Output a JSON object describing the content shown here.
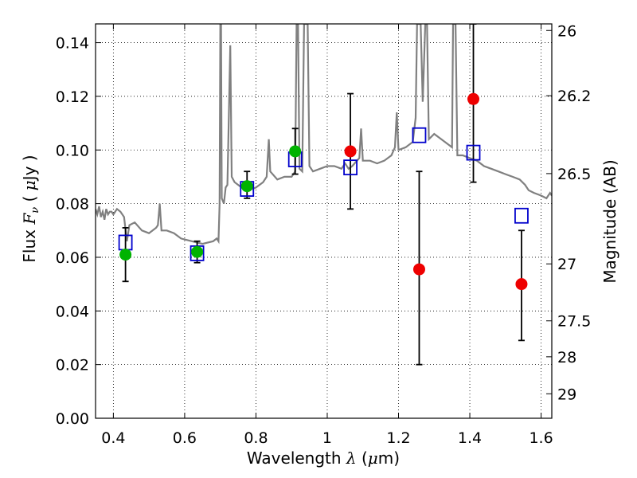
{
  "chart_data": {
    "type": "scatter",
    "xlabel": {
      "prefix": "Wavelength  ",
      "symbol": "λ",
      "open": " (",
      "mu": "μ",
      "unit": "m)"
    },
    "ylabel": {
      "prefix": "Flux  ",
      "symbol": "F",
      "sub": "ν",
      "open": "  (  ",
      "mu": "μ",
      "unit": "Jy )"
    },
    "y2label": "Magnitude (AB)",
    "xlim": [
      0.35,
      1.63
    ],
    "ylim": [
      0.0,
      0.147
    ],
    "grid": true,
    "xticks": [
      {
        "v": 0.4,
        "label": "0.4"
      },
      {
        "v": 0.6,
        "label": "0.6"
      },
      {
        "v": 0.8,
        "label": "0.8"
      },
      {
        "v": 1.0,
        "label": "1"
      },
      {
        "v": 1.2,
        "label": "1.2"
      },
      {
        "v": 1.4,
        "label": "1.4"
      },
      {
        "v": 1.6,
        "label": "1.6"
      }
    ],
    "yticks": [
      {
        "v": 0.0,
        "label": "0.00"
      },
      {
        "v": 0.02,
        "label": "0.02"
      },
      {
        "v": 0.04,
        "label": "0.04"
      },
      {
        "v": 0.06,
        "label": "0.06"
      },
      {
        "v": 0.08,
        "label": "0.08"
      },
      {
        "v": 0.1,
        "label": "0.10"
      },
      {
        "v": 0.12,
        "label": "0.12"
      },
      {
        "v": 0.14,
        "label": "0.14"
      }
    ],
    "mag_ticks": [
      {
        "mag": 26,
        "label": "26"
      },
      {
        "mag": 26.2,
        "label": "26.2"
      },
      {
        "mag": 26.5,
        "label": "26.5"
      },
      {
        "mag": 27,
        "label": "27"
      },
      {
        "mag": 27.5,
        "label": "27.5"
      },
      {
        "mag": 28,
        "label": "28"
      },
      {
        "mag": 29,
        "label": "29"
      }
    ],
    "colors": {
      "spectrum": "#808080",
      "green": "#00b300",
      "red": "#ee0000",
      "model_box": "#0000cc",
      "error_bar": "#000000",
      "grid": "#000000"
    },
    "spectrum": [
      [
        0.35,
        0.078
      ],
      [
        0.355,
        0.076
      ],
      [
        0.36,
        0.079
      ],
      [
        0.365,
        0.075
      ],
      [
        0.37,
        0.077
      ],
      [
        0.375,
        0.074
      ],
      [
        0.38,
        0.078
      ],
      [
        0.385,
        0.076
      ],
      [
        0.39,
        0.077
      ],
      [
        0.395,
        0.077
      ],
      [
        0.4,
        0.076
      ],
      [
        0.41,
        0.078
      ],
      [
        0.42,
        0.077
      ],
      [
        0.43,
        0.075
      ],
      [
        0.438,
        0.066
      ],
      [
        0.445,
        0.072
      ],
      [
        0.46,
        0.073
      ],
      [
        0.48,
        0.07
      ],
      [
        0.5,
        0.069
      ],
      [
        0.52,
        0.071
      ],
      [
        0.525,
        0.072
      ],
      [
        0.53,
        0.08
      ],
      [
        0.535,
        0.07
      ],
      [
        0.55,
        0.07
      ],
      [
        0.57,
        0.069
      ],
      [
        0.59,
        0.067
      ],
      [
        0.62,
        0.066
      ],
      [
        0.65,
        0.065
      ],
      [
        0.68,
        0.066
      ],
      [
        0.69,
        0.067
      ],
      [
        0.695,
        0.066
      ],
      [
        0.698,
        0.08
      ],
      [
        0.7,
        0.147
      ],
      [
        0.702,
        0.147
      ],
      [
        0.704,
        0.082
      ],
      [
        0.71,
        0.08
      ],
      [
        0.715,
        0.086
      ],
      [
        0.72,
        0.087
      ],
      [
        0.725,
        0.12
      ],
      [
        0.728,
        0.139
      ],
      [
        0.732,
        0.09
      ],
      [
        0.74,
        0.088
      ],
      [
        0.76,
        0.086
      ],
      [
        0.78,
        0.085
      ],
      [
        0.8,
        0.086
      ],
      [
        0.82,
        0.088
      ],
      [
        0.83,
        0.09
      ],
      [
        0.836,
        0.104
      ],
      [
        0.84,
        0.092
      ],
      [
        0.86,
        0.089
      ],
      [
        0.88,
        0.09
      ],
      [
        0.9,
        0.09
      ],
      [
        0.91,
        0.092
      ],
      [
        0.914,
        0.147
      ],
      [
        0.918,
        0.147
      ],
      [
        0.922,
        0.093
      ],
      [
        0.93,
        0.092
      ],
      [
        0.935,
        0.147
      ],
      [
        0.945,
        0.147
      ],
      [
        0.95,
        0.094
      ],
      [
        0.96,
        0.092
      ],
      [
        0.98,
        0.093
      ],
      [
        1.0,
        0.094
      ],
      [
        1.02,
        0.094
      ],
      [
        1.04,
        0.093
      ],
      [
        1.05,
        0.095
      ],
      [
        1.06,
        0.093
      ],
      [
        1.07,
        0.094
      ],
      [
        1.09,
        0.097
      ],
      [
        1.095,
        0.108
      ],
      [
        1.1,
        0.096
      ],
      [
        1.12,
        0.096
      ],
      [
        1.14,
        0.095
      ],
      [
        1.16,
        0.096
      ],
      [
        1.18,
        0.098
      ],
      [
        1.19,
        0.101
      ],
      [
        1.195,
        0.114
      ],
      [
        1.2,
        0.1
      ],
      [
        1.22,
        0.101
      ],
      [
        1.24,
        0.103
      ],
      [
        1.248,
        0.112
      ],
      [
        1.252,
        0.147
      ],
      [
        1.262,
        0.147
      ],
      [
        1.268,
        0.118
      ],
      [
        1.275,
        0.147
      ],
      [
        1.28,
        0.147
      ],
      [
        1.285,
        0.104
      ],
      [
        1.3,
        0.106
      ],
      [
        1.32,
        0.104
      ],
      [
        1.34,
        0.102
      ],
      [
        1.35,
        0.101
      ],
      [
        1.353,
        0.147
      ],
      [
        1.36,
        0.147
      ],
      [
        1.365,
        0.098
      ],
      [
        1.38,
        0.098
      ],
      [
        1.4,
        0.097
      ],
      [
        1.42,
        0.096
      ],
      [
        1.44,
        0.094
      ],
      [
        1.46,
        0.093
      ],
      [
        1.48,
        0.092
      ],
      [
        1.5,
        0.091
      ],
      [
        1.52,
        0.09
      ],
      [
        1.54,
        0.089
      ],
      [
        1.555,
        0.087
      ],
      [
        1.565,
        0.085
      ],
      [
        1.58,
        0.084
      ],
      [
        1.6,
        0.083
      ],
      [
        1.615,
        0.082
      ],
      [
        1.625,
        0.084
      ],
      [
        1.63,
        0.083
      ]
    ],
    "series": [
      {
        "color": "green",
        "points": [
          {
            "x": 0.434,
            "y": 0.061,
            "yerr": [
              0.051,
              0.071
            ]
          },
          {
            "x": 0.635,
            "y": 0.062,
            "yerr": [
              0.058,
              0.066
            ]
          },
          {
            "x": 0.775,
            "y": 0.0865,
            "yerr": [
              0.082,
              0.092
            ]
          },
          {
            "x": 0.91,
            "y": 0.0995,
            "yerr": [
              0.091,
              0.108
            ]
          }
        ]
      },
      {
        "color": "red",
        "points": [
          {
            "x": 1.065,
            "y": 0.0995,
            "yerr": [
              0.078,
              0.121
            ]
          },
          {
            "x": 1.258,
            "y": 0.0555,
            "yerr": [
              0.02,
              0.092
            ]
          },
          {
            "x": 1.41,
            "y": 0.119,
            "yerr": [
              0.088,
              0.147
            ]
          },
          {
            "x": 1.545,
            "y": 0.05,
            "yerr": [
              0.029,
              0.07
            ]
          }
        ]
      },
      {
        "color": "model_box",
        "points": [
          {
            "x": 0.434,
            "y": 0.0655
          },
          {
            "x": 0.635,
            "y": 0.0615
          },
          {
            "x": 0.775,
            "y": 0.0855
          },
          {
            "x": 0.91,
            "y": 0.0965
          },
          {
            "x": 1.065,
            "y": 0.0935
          },
          {
            "x": 1.258,
            "y": 0.1055
          },
          {
            "x": 1.41,
            "y": 0.099
          },
          {
            "x": 1.545,
            "y": 0.0755
          }
        ]
      }
    ]
  }
}
